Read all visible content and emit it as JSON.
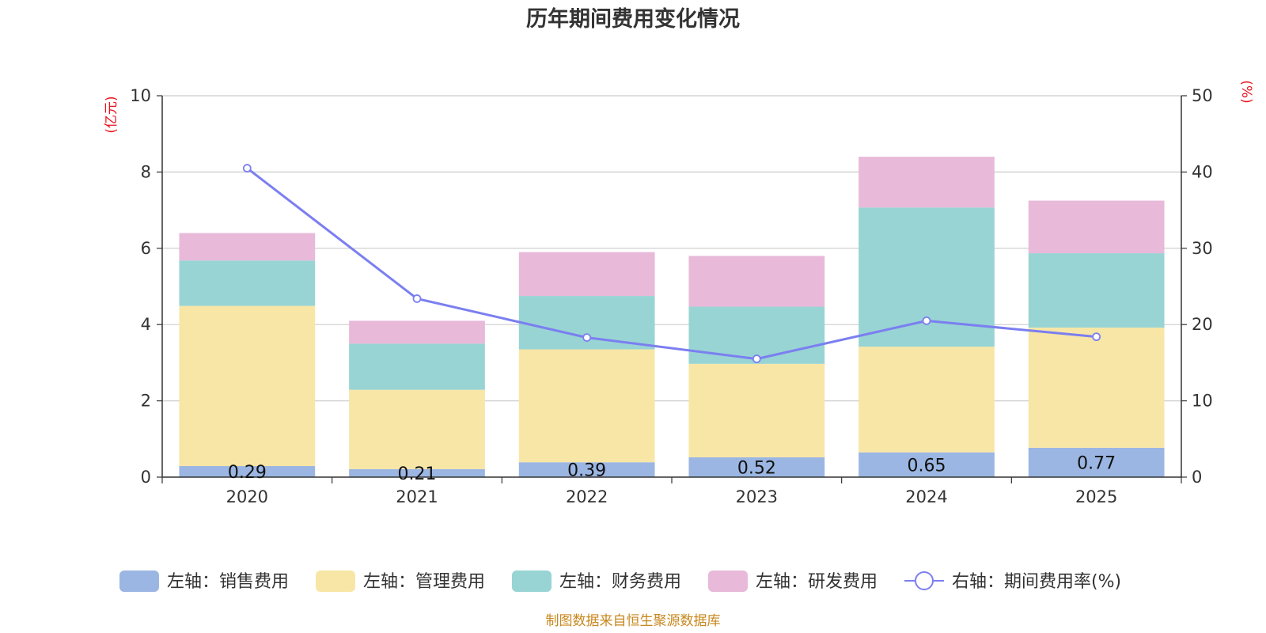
{
  "chart_data": {
    "type": "bar",
    "stacked": true,
    "title": "历年期间费用变化情况",
    "categories": [
      "2020",
      "2021",
      "2022",
      "2023",
      "2024",
      "2025"
    ],
    "left_axis": {
      "unit": "(亿元)",
      "min": 0,
      "max": 10,
      "ticks": [
        "0",
        "2",
        "4",
        "6",
        "8",
        "10"
      ]
    },
    "right_axis": {
      "unit": "(%)",
      "min": 0,
      "max": 50,
      "ticks": [
        "0",
        "10",
        "20",
        "30",
        "40",
        "50"
      ]
    },
    "series": [
      {
        "name": "左轴：销售费用",
        "axis": "left",
        "kind": "bar",
        "color": "#9bb6e2",
        "values": [
          0.29,
          0.21,
          0.39,
          0.52,
          0.65,
          0.77
        ],
        "labels": [
          "0.29",
          "0.21",
          "0.39",
          "0.52",
          "0.65",
          "0.77"
        ]
      },
      {
        "name": "左轴：管理费用",
        "axis": "left",
        "kind": "bar",
        "color": "#f8e6a6",
        "values": [
          4.2,
          2.08,
          2.96,
          2.45,
          2.77,
          3.15
        ]
      },
      {
        "name": "左轴：财务费用",
        "axis": "left",
        "kind": "bar",
        "color": "#98d4d4",
        "values": [
          1.19,
          1.21,
          1.4,
          1.5,
          3.65,
          1.95
        ]
      },
      {
        "name": "左轴：研发费用",
        "axis": "left",
        "kind": "bar",
        "color": "#e8b9d9",
        "values": [
          0.72,
          0.6,
          1.15,
          1.33,
          1.33,
          1.38
        ]
      },
      {
        "name": "右轴：期间费用率(%)",
        "axis": "right",
        "kind": "line",
        "color": "#7b7ff0",
        "values": [
          40.5,
          23.4,
          18.3,
          15.5,
          20.5,
          18.4
        ]
      }
    ],
    "grid": true,
    "legend_position": "bottom"
  },
  "source": "制图数据来自恒生聚源数据库"
}
